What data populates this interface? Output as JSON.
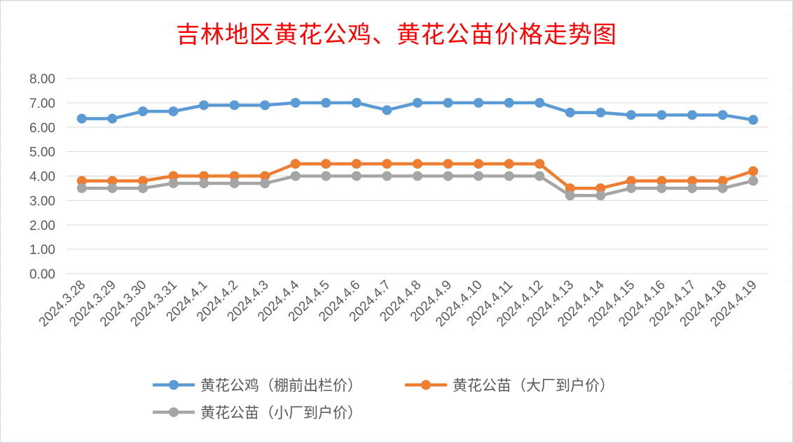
{
  "chart_data": {
    "type": "line",
    "title": "吉林地区黄花公鸡、黄花公苗价格走势图",
    "xlabel": "",
    "ylabel": "",
    "ylim": [
      0,
      8
    ],
    "yticks": [
      "0.00",
      "1.00",
      "2.00",
      "3.00",
      "4.00",
      "5.00",
      "6.00",
      "7.00",
      "8.00"
    ],
    "grid": true,
    "legend_position": "bottom",
    "categories": [
      "2024.3.28",
      "2024.3.29",
      "2024.3.30",
      "2024.3.31",
      "2024.4.1",
      "2024.4.2",
      "2024.4.3",
      "2024.4.4",
      "2024.4.5",
      "2024.4.6",
      "2024.4.7",
      "2024.4.8",
      "2024.4.9",
      "2024.4.10",
      "2024.4.11",
      "2024.4.12",
      "2024.4.13",
      "2024.4.14",
      "2024.4.15",
      "2024.4.16",
      "2024.4.17",
      "2024.4.18",
      "2024.4.19"
    ],
    "series": [
      {
        "name": "黄花公鸡（棚前出栏价）",
        "color": "#5b9bd5",
        "values": [
          6.35,
          6.35,
          6.65,
          6.65,
          6.9,
          6.9,
          6.9,
          7.0,
          7.0,
          7.0,
          6.7,
          7.0,
          7.0,
          7.0,
          7.0,
          7.0,
          6.6,
          6.6,
          6.5,
          6.5,
          6.5,
          6.5,
          6.3
        ]
      },
      {
        "name": "黄花公苗（大厂到户价）",
        "color": "#ed7d31",
        "values": [
          3.8,
          3.8,
          3.8,
          4.0,
          4.0,
          4.0,
          4.0,
          4.5,
          4.5,
          4.5,
          4.5,
          4.5,
          4.5,
          4.5,
          4.5,
          4.5,
          3.5,
          3.5,
          3.8,
          3.8,
          3.8,
          3.8,
          4.2
        ]
      },
      {
        "name": "黄花公苗（小厂到户价）",
        "color": "#a5a5a5",
        "values": [
          3.5,
          3.5,
          3.5,
          3.7,
          3.7,
          3.7,
          3.7,
          4.0,
          4.0,
          4.0,
          4.0,
          4.0,
          4.0,
          4.0,
          4.0,
          4.0,
          3.2,
          3.2,
          3.5,
          3.5,
          3.5,
          3.5,
          3.8
        ]
      }
    ]
  }
}
